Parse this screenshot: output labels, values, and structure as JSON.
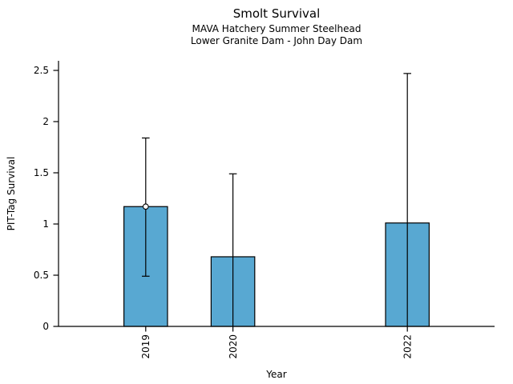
{
  "chart_data": {
    "type": "bar",
    "title": "Smolt Survival",
    "subtitle": [
      "MAVA Hatchery Summer Steelhead",
      "Lower Granite Dam - John Day Dam"
    ],
    "xlabel": "Year",
    "ylabel": "PIT-Tag Survival",
    "categories": [
      "2019",
      "2020",
      "2022"
    ],
    "x_values": [
      2019,
      2020,
      2022
    ],
    "values": [
      1.17,
      0.68,
      1.01
    ],
    "error_low": [
      0.49,
      0,
      0
    ],
    "error_high": [
      1.84,
      1.49,
      2.47
    ],
    "markers": [
      {
        "x": 2019,
        "y": 1.17,
        "shape": "open-circle"
      }
    ],
    "xlim": [
      2018,
      2023
    ],
    "ylim": [
      0,
      2.5
    ],
    "yticks": [
      0,
      0.5,
      1,
      1.5,
      2,
      2.5
    ],
    "ytick_labels": [
      "0",
      "0.5",
      "1",
      "1.5",
      "2",
      "2.5"
    ],
    "xtick_label_rotation": -90,
    "bar_width_x": 0.5,
    "bar_color": "#58a8d2",
    "bar_edge_color": "#000000",
    "error_bar_color": "#000000",
    "marker_fill": "#ffffff",
    "marker_edge_color": "#000000",
    "axis_color": "#000000",
    "text_color": "#000000",
    "background": "#ffffff",
    "grid": false,
    "legend": false
  }
}
